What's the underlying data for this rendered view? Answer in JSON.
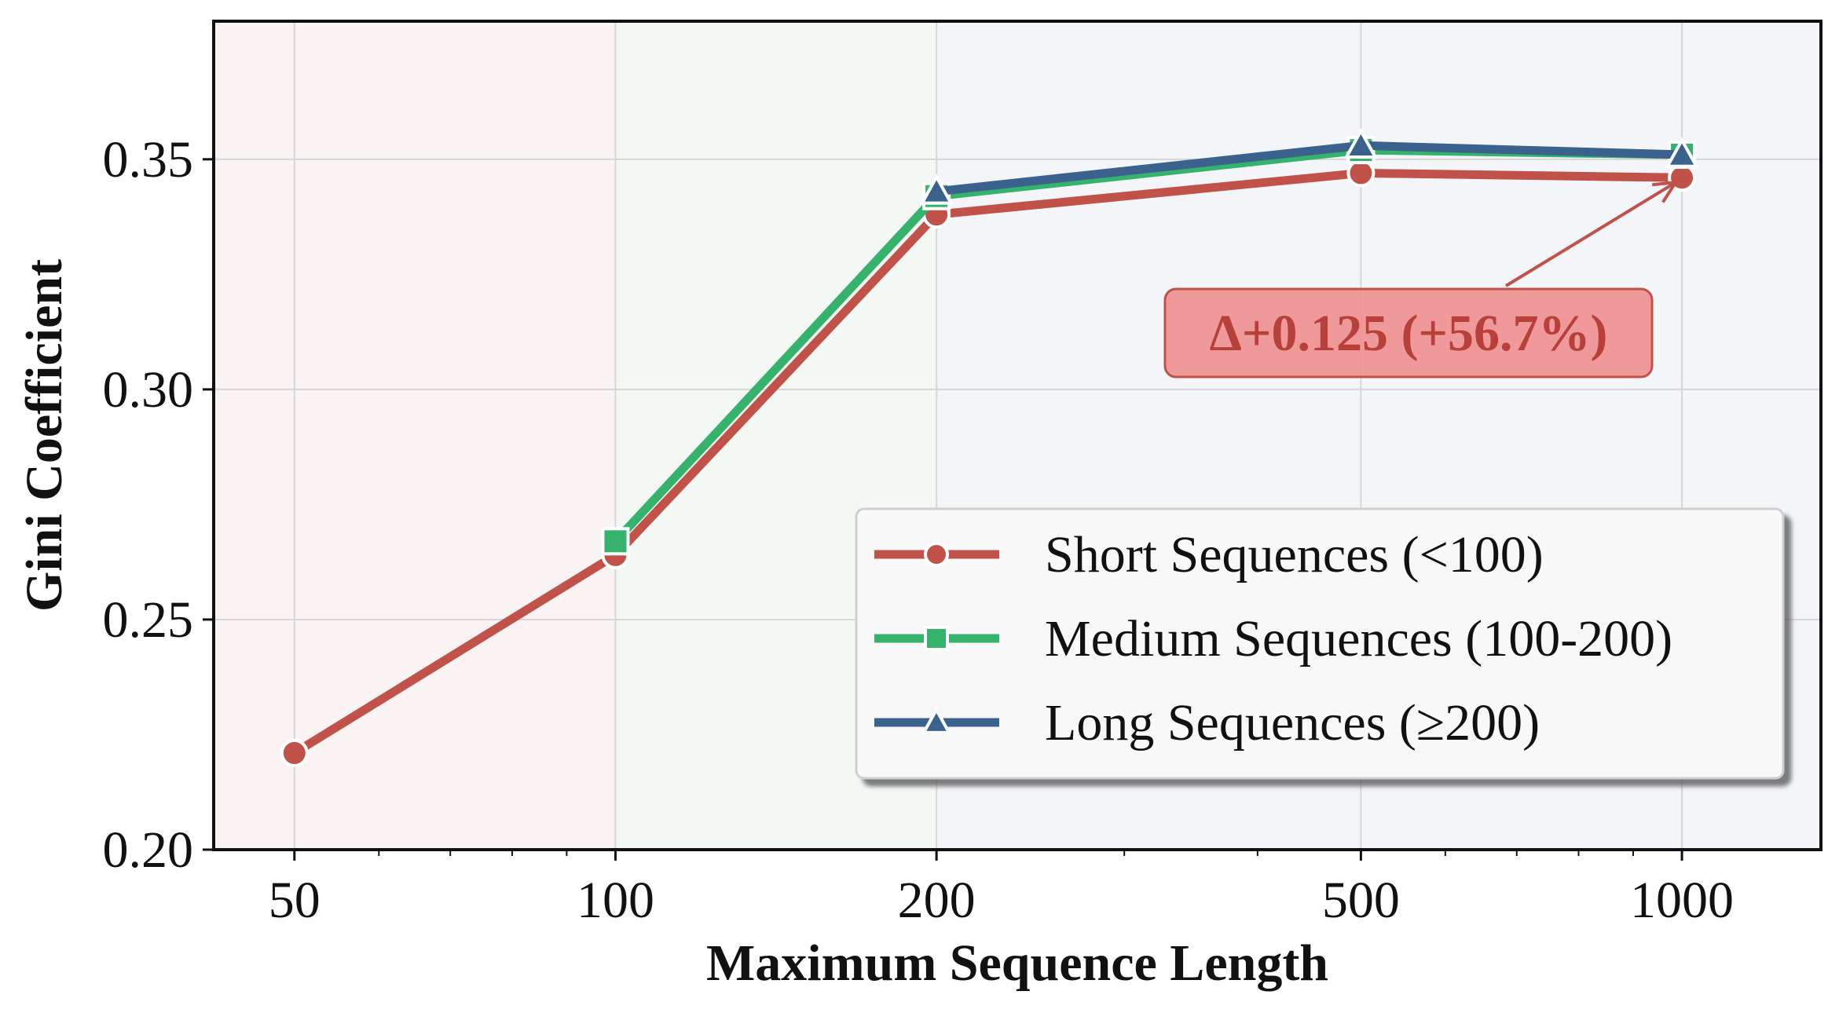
{
  "chart_data": {
    "type": "line",
    "xlabel": "Maximum Sequence Length",
    "ylabel": "Gini Coefficient",
    "x_scale": "log",
    "xlim": [
      42,
      1350
    ],
    "ylim": [
      0.2,
      0.38
    ],
    "x_ticks": [
      50,
      100,
      200,
      500,
      1000
    ],
    "x_tick_labels": [
      "50",
      "100",
      "200",
      "500",
      "1000"
    ],
    "y_ticks": [
      0.2,
      0.25,
      0.3,
      0.35
    ],
    "y_tick_labels": [
      "0.20",
      "0.25",
      "0.30",
      "0.35"
    ],
    "grid": true,
    "legend_position": "lower-right",
    "background_bands": [
      {
        "from": 42,
        "to": 100,
        "color": "#f9f4f3"
      },
      {
        "from": 100,
        "to": 200,
        "color": "#f3f8f5"
      },
      {
        "from": 200,
        "to": 1350,
        "color": "#f3f5f9"
      }
    ],
    "series": [
      {
        "name": "Short Sequences (<100)",
        "color": "#c0524a",
        "marker": "circle",
        "x": [
          50,
          100,
          200,
          500,
          1000
        ],
        "y": [
          0.221,
          0.264,
          0.338,
          0.347,
          0.346
        ]
      },
      {
        "name": "Medium Sequences (100-200)",
        "color": "#35b26c",
        "marker": "square",
        "x": [
          100,
          200,
          500,
          1000
        ],
        "y": [
          0.267,
          0.342,
          0.352,
          0.351
        ]
      },
      {
        "name": "Long Sequences (≥200)",
        "color": "#3b628d",
        "marker": "triangle",
        "x": [
          200,
          500,
          1000
        ],
        "y": [
          0.343,
          0.353,
          0.351
        ]
      }
    ],
    "annotation": {
      "text": "Δ+0.125 (+56.7%)",
      "target": {
        "x": 1000,
        "y": 0.346
      },
      "text_at": {
        "x": 650,
        "y": 0.3125
      },
      "box_color": "#ef8f8f",
      "edge_color": "#c0524a"
    }
  }
}
